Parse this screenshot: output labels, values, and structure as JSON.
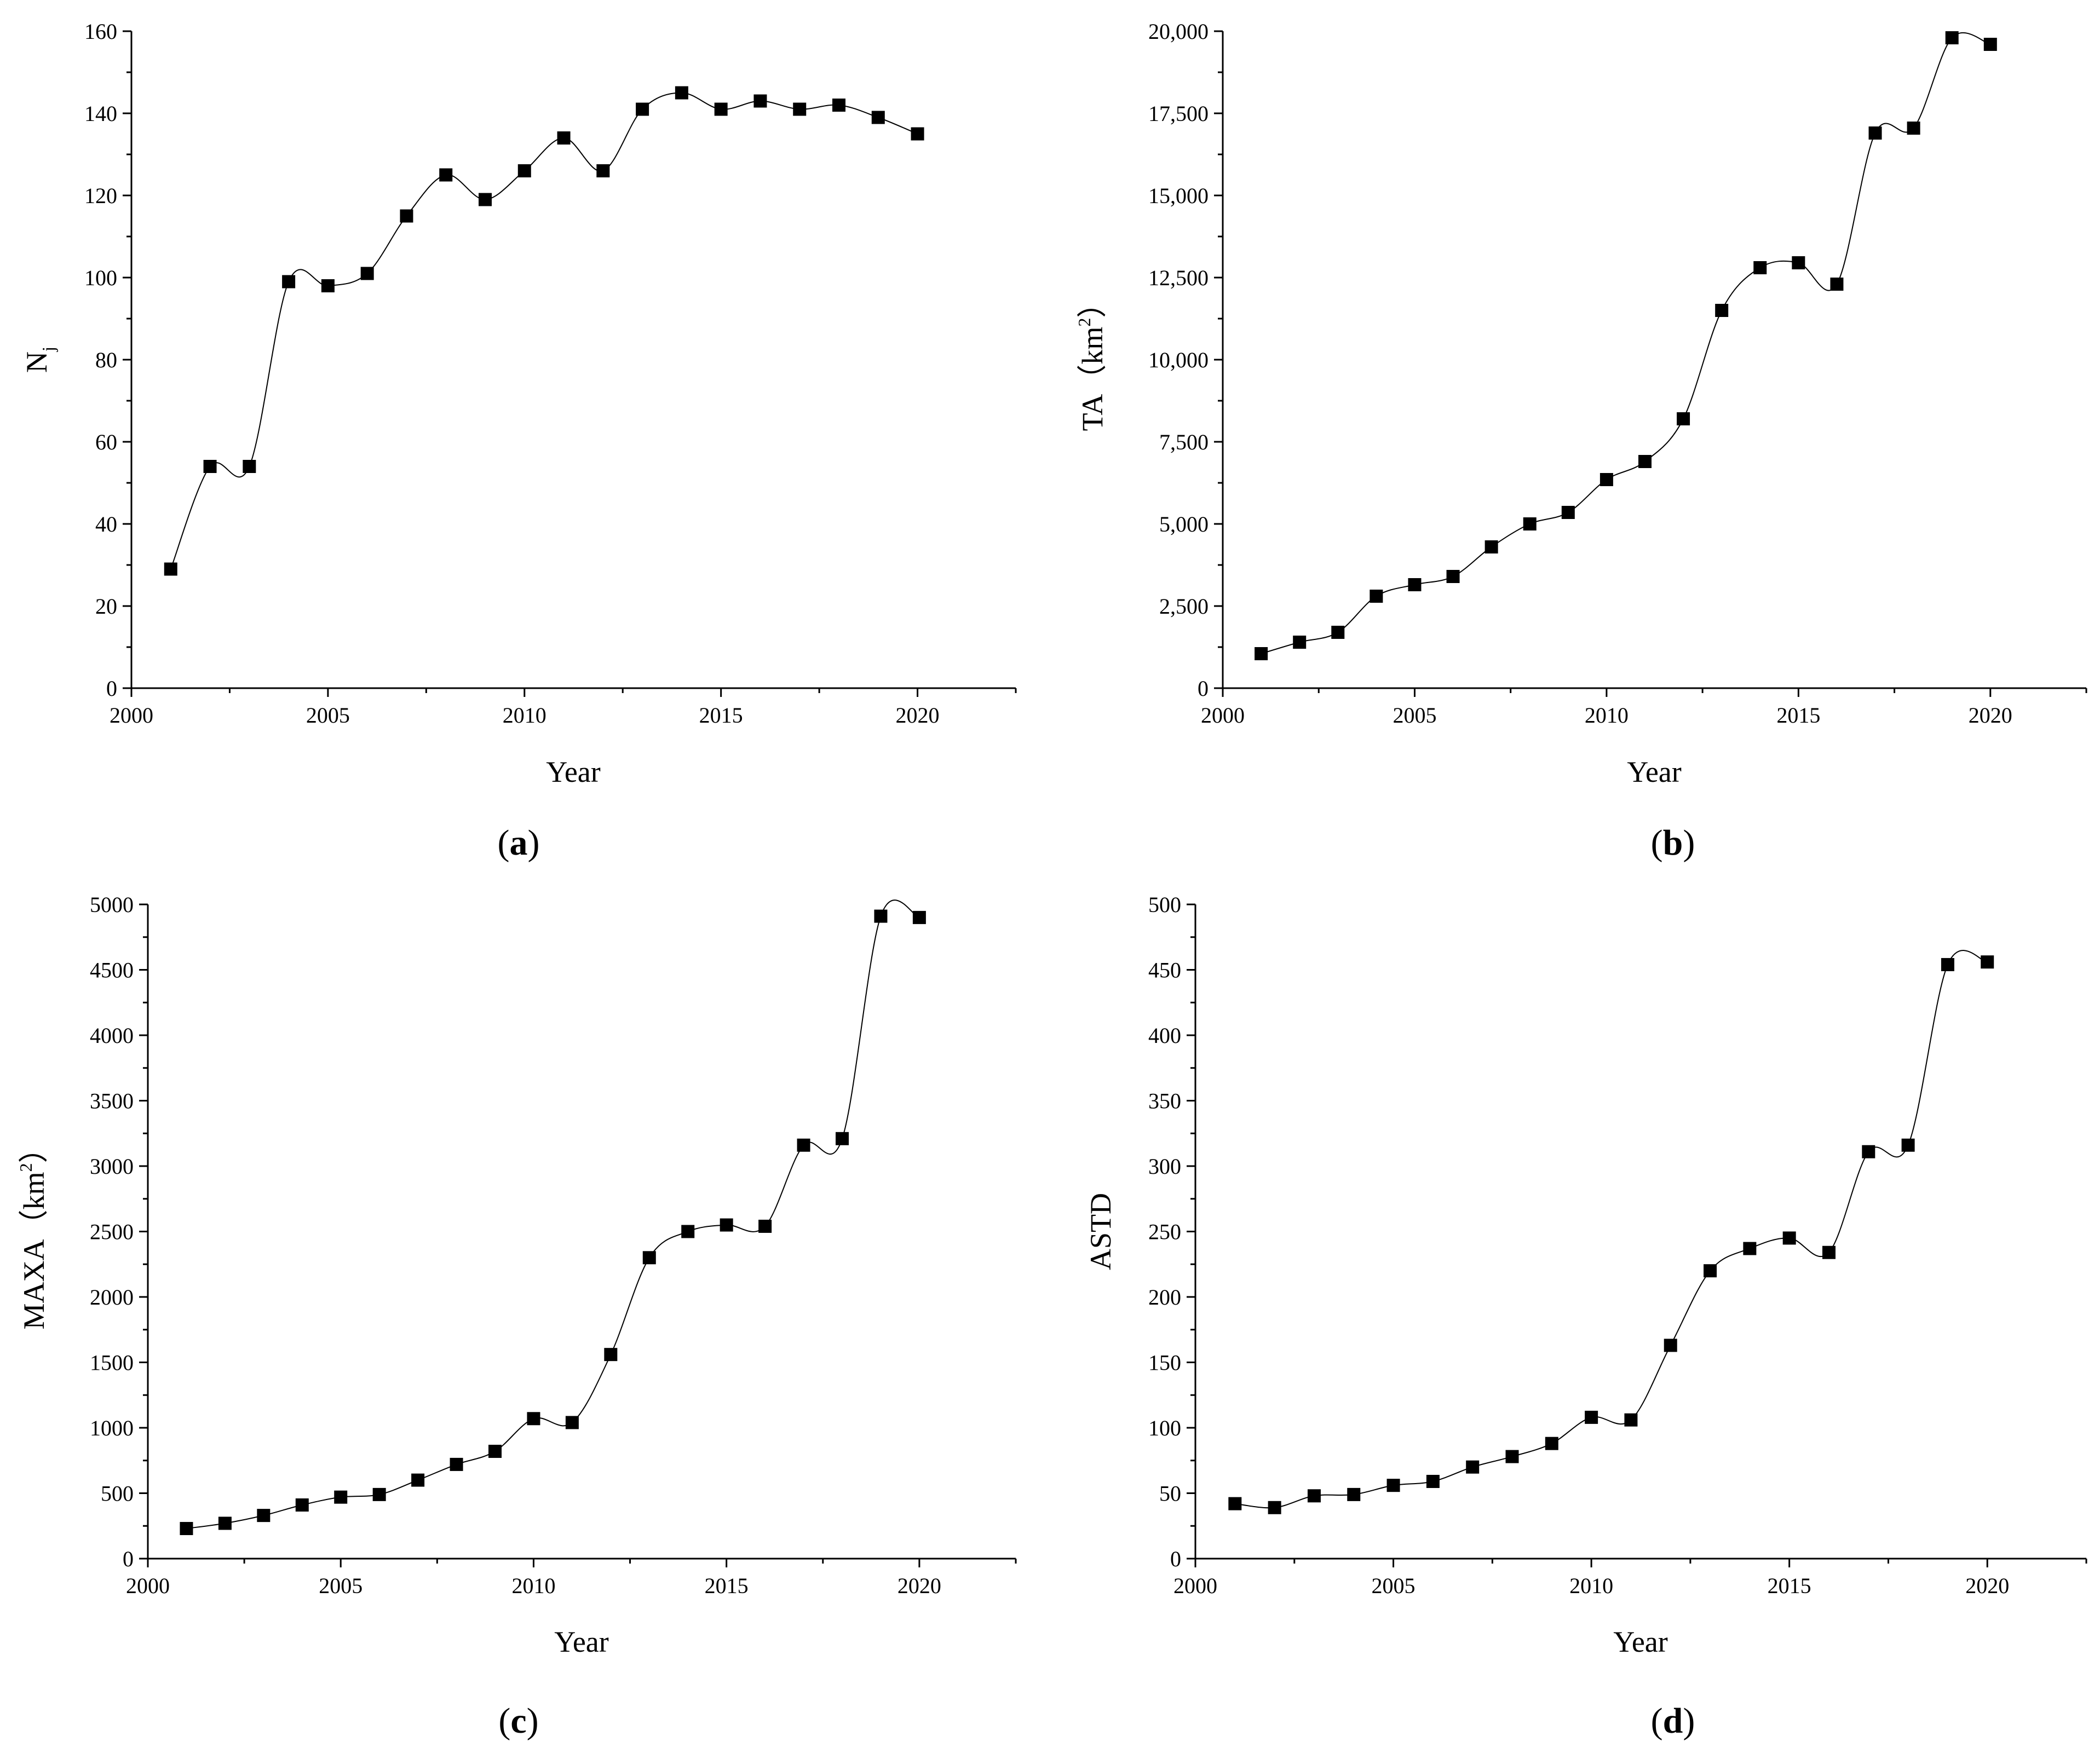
{
  "chart_data": [
    {
      "id": "a",
      "panel_label": "a",
      "type": "line",
      "xlabel": "Year",
      "ylabel": "N",
      "ylabel_subscript": "j",
      "x_ticks": [
        2000,
        2005,
        2010,
        2015,
        2020
      ],
      "x_tick_labels": [
        "2000",
        "2005",
        "2010",
        "2015",
        "2020"
      ],
      "xlim": [
        2000,
        2022.5
      ],
      "ylim": [
        0,
        160
      ],
      "y_ticks": [
        0,
        20,
        40,
        60,
        80,
        100,
        120,
        140,
        160
      ],
      "y_tick_labels": [
        "0",
        "20",
        "40",
        "60",
        "80",
        "100",
        "120",
        "140",
        "160"
      ],
      "x": [
        2001,
        2002,
        2003,
        2004,
        2005,
        2006,
        2007,
        2008,
        2009,
        2010,
        2011,
        2012,
        2013,
        2014,
        2015,
        2016,
        2017,
        2018,
        2019,
        2020
      ],
      "y": [
        29,
        54,
        54,
        99,
        98,
        101,
        115,
        125,
        119,
        126,
        134,
        126,
        141,
        145,
        141,
        143,
        141,
        142,
        139,
        135
      ]
    },
    {
      "id": "b",
      "panel_label": "b",
      "type": "line",
      "xlabel": "Year",
      "ylabel": "TA（km",
      "ylabel_superscript": "2",
      "ylabel_suffix": "）",
      "x_ticks": [
        2000,
        2005,
        2010,
        2015,
        2020
      ],
      "x_tick_labels": [
        "2000",
        "2005",
        "2010",
        "2015",
        "2020"
      ],
      "xlim": [
        2000,
        2022.5
      ],
      "ylim": [
        0,
        20000
      ],
      "y_ticks": [
        0,
        2500,
        5000,
        7500,
        10000,
        12500,
        15000,
        17500,
        20000
      ],
      "y_tick_labels": [
        "0",
        "2,500",
        "5,000",
        "7,500",
        "10,000",
        "12,500",
        "15,000",
        "17,500",
        "20,000"
      ],
      "x": [
        2001,
        2002,
        2003,
        2004,
        2005,
        2006,
        2007,
        2008,
        2009,
        2010,
        2011,
        2012,
        2013,
        2014,
        2015,
        2016,
        2017,
        2018,
        2019,
        2020
      ],
      "y": [
        1050,
        1400,
        1700,
        2800,
        3150,
        3400,
        4300,
        5000,
        5350,
        6350,
        6900,
        8200,
        11500,
        12800,
        12950,
        12300,
        16900,
        17050,
        19800,
        19600
      ]
    },
    {
      "id": "c",
      "panel_label": "c",
      "type": "line",
      "xlabel": "Year",
      "ylabel": "MAXA（km",
      "ylabel_superscript": "2",
      "ylabel_suffix": "）",
      "x_ticks": [
        2000,
        2005,
        2010,
        2015,
        2020
      ],
      "x_tick_labels": [
        "2000",
        "2005",
        "2010",
        "2015",
        "2020"
      ],
      "xlim": [
        2000,
        2022.5
      ],
      "ylim": [
        0,
        5000
      ],
      "y_ticks": [
        0,
        500,
        1000,
        1500,
        2000,
        2500,
        3000,
        3500,
        4000,
        4500,
        5000
      ],
      "y_tick_labels": [
        "0",
        "500",
        "1000",
        "1500",
        "2000",
        "2500",
        "3000",
        "3500",
        "4000",
        "4500",
        "5000"
      ],
      "x": [
        2001,
        2002,
        2003,
        2004,
        2005,
        2006,
        2007,
        2008,
        2009,
        2010,
        2011,
        2012,
        2013,
        2014,
        2015,
        2016,
        2017,
        2018,
        2019,
        2020
      ],
      "y": [
        230,
        270,
        330,
        410,
        470,
        490,
        600,
        720,
        820,
        1070,
        1040,
        1560,
        2300,
        2500,
        2550,
        2540,
        3160,
        3210,
        4910,
        4900
      ]
    },
    {
      "id": "d",
      "panel_label": "d",
      "type": "line",
      "xlabel": "Year",
      "ylabel": "ASTD",
      "x_ticks": [
        2000,
        2005,
        2010,
        2015,
        2020
      ],
      "x_tick_labels": [
        "2000",
        "2005",
        "2010",
        "2015",
        "2020"
      ],
      "xlim": [
        2000,
        2022.5
      ],
      "ylim": [
        0,
        500
      ],
      "y_ticks": [
        0,
        50,
        100,
        150,
        200,
        250,
        300,
        350,
        400,
        450,
        500
      ],
      "y_tick_labels": [
        "0",
        "50",
        "100",
        "150",
        "200",
        "250",
        "300",
        "350",
        "400",
        "450",
        "500"
      ],
      "x": [
        2001,
        2002,
        2003,
        2004,
        2005,
        2006,
        2007,
        2008,
        2009,
        2010,
        2011,
        2012,
        2013,
        2014,
        2015,
        2016,
        2017,
        2018,
        2019,
        2020
      ],
      "y": [
        42,
        39,
        48,
        49,
        56,
        59,
        70,
        78,
        88,
        108,
        106,
        163,
        220,
        237,
        245,
        234,
        311,
        316,
        454,
        456
      ]
    }
  ]
}
